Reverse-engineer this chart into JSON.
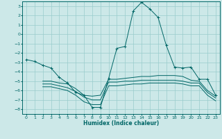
{
  "xlabel": "Humidex (Indice chaleur)",
  "ylabel": "",
  "bg_color": "#cce8e8",
  "line_color": "#006666",
  "grid_color": "#99cccc",
  "xlim": [
    -0.5,
    23.5
  ],
  "ylim": [
    -8.5,
    3.5
  ],
  "xticks": [
    0,
    1,
    2,
    3,
    4,
    5,
    6,
    7,
    8,
    9,
    10,
    11,
    12,
    13,
    14,
    15,
    16,
    17,
    18,
    19,
    20,
    21,
    22,
    23
  ],
  "yticks": [
    -8,
    -7,
    -6,
    -5,
    -4,
    -3,
    -2,
    -1,
    0,
    1,
    2,
    3
  ],
  "line1_x": [
    0,
    1,
    2,
    3,
    4,
    5,
    6,
    7,
    8,
    9,
    10,
    11,
    12,
    13,
    14,
    15,
    16,
    17,
    18,
    19,
    20,
    21,
    22,
    23
  ],
  "line1_y": [
    -2.7,
    -2.9,
    -3.3,
    -3.6,
    -4.6,
    -5.2,
    -6.2,
    -6.5,
    -7.8,
    -7.8,
    -4.7,
    -1.5,
    -1.3,
    2.5,
    3.4,
    2.7,
    1.8,
    -1.2,
    -3.5,
    -3.6,
    -3.5,
    -4.8,
    -4.8,
    -6.5
  ],
  "line2_x": [
    2,
    3,
    4,
    5,
    6,
    7,
    8,
    9,
    10,
    11,
    12,
    13,
    14,
    15,
    16,
    17,
    18,
    19,
    20,
    21,
    22,
    23
  ],
  "line2_y": [
    -5.0,
    -5.0,
    -5.2,
    -5.3,
    -5.8,
    -6.5,
    -6.6,
    -6.5,
    -4.8,
    -4.8,
    -4.7,
    -4.6,
    -4.5,
    -4.5,
    -4.4,
    -4.4,
    -4.4,
    -4.5,
    -4.9,
    -5.0,
    -6.0,
    -6.6
  ],
  "line3_x": [
    2,
    3,
    4,
    5,
    6,
    7,
    8,
    9,
    10,
    11,
    12,
    13,
    14,
    15,
    16,
    17,
    18,
    19,
    20,
    21,
    22,
    23
  ],
  "line3_y": [
    -5.3,
    -5.3,
    -5.5,
    -5.7,
    -6.1,
    -6.7,
    -7.0,
    -7.0,
    -5.1,
    -5.1,
    -5.0,
    -5.0,
    -4.9,
    -4.9,
    -4.9,
    -4.9,
    -4.9,
    -5.0,
    -5.2,
    -5.2,
    -6.2,
    -6.8
  ],
  "line4_x": [
    2,
    3,
    4,
    5,
    6,
    7,
    8,
    9,
    10,
    11,
    12,
    13,
    14,
    15,
    16,
    17,
    18,
    19,
    20,
    21,
    22,
    23
  ],
  "line4_y": [
    -5.6,
    -5.6,
    -5.8,
    -6.0,
    -6.5,
    -7.2,
    -7.5,
    -7.5,
    -5.5,
    -5.5,
    -5.4,
    -5.3,
    -5.3,
    -5.2,
    -5.2,
    -5.2,
    -5.2,
    -5.3,
    -5.5,
    -5.5,
    -6.5,
    -7.1
  ]
}
